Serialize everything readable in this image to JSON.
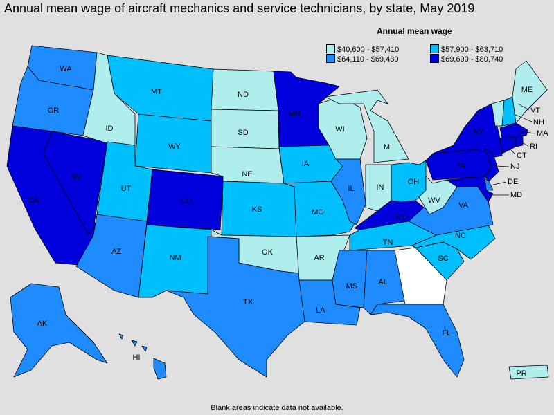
{
  "title": "Annual mean wage of aircraft mechanics and service technicians, by state, May 2019",
  "legend": {
    "title": "Annual mean wage",
    "bins": [
      {
        "label": "$40,600 - $57,410",
        "color": "#b0eeee"
      },
      {
        "label": "$57,900 - $63,710",
        "color": "#00bfff"
      },
      {
        "label": "$64,110 - $69,430",
        "color": "#1e8cff"
      },
      {
        "label": "$69,690 - $80,740",
        "color": "#0000dd"
      }
    ]
  },
  "no_data_color": "#ffffff",
  "footnote": "Blank areas indicate data not available.",
  "states": {
    "WA": {
      "label": "WA",
      "bin": 2
    },
    "OR": {
      "label": "OR",
      "bin": 2
    },
    "CA": {
      "label": "CA",
      "bin": 3
    },
    "NV": {
      "label": "NV",
      "bin": 3
    },
    "ID": {
      "label": "ID",
      "bin": 0
    },
    "MT": {
      "label": "MT",
      "bin": 1
    },
    "WY": {
      "label": "WY",
      "bin": 1
    },
    "UT": {
      "label": "UT",
      "bin": 1
    },
    "AZ": {
      "label": "AZ",
      "bin": 2
    },
    "CO": {
      "label": "CO",
      "bin": 3
    },
    "NM": {
      "label": "NM",
      "bin": 1
    },
    "ND": {
      "label": "ND",
      "bin": 0
    },
    "SD": {
      "label": "SD",
      "bin": 0
    },
    "NE": {
      "label": "NE",
      "bin": 0
    },
    "KS": {
      "label": "KS",
      "bin": 1
    },
    "OK": {
      "label": "OK",
      "bin": 0
    },
    "TX": {
      "label": "TX",
      "bin": 2
    },
    "MN": {
      "label": "MN",
      "bin": 3
    },
    "IA": {
      "label": "IA",
      "bin": 1
    },
    "MO": {
      "label": "MO",
      "bin": 1
    },
    "AR": {
      "label": "AR",
      "bin": 0
    },
    "LA": {
      "label": "LA",
      "bin": 2
    },
    "WI": {
      "label": "WI",
      "bin": 0
    },
    "IL": {
      "label": "IL",
      "bin": 2
    },
    "MI": {
      "label": "MI",
      "bin": 0
    },
    "IN": {
      "label": "IN",
      "bin": 0
    },
    "OH": {
      "label": "OH",
      "bin": 1
    },
    "KY": {
      "label": "KY",
      "bin": 3
    },
    "TN": {
      "label": "TN",
      "bin": 1
    },
    "MS": {
      "label": "MS",
      "bin": 2
    },
    "AL": {
      "label": "AL",
      "bin": 2
    },
    "GA": {
      "label": "",
      "bin": null
    },
    "FL": {
      "label": "FL",
      "bin": 2
    },
    "SC": {
      "label": "SC",
      "bin": 1
    },
    "NC": {
      "label": "NC",
      "bin": 1
    },
    "VA": {
      "label": "VA",
      "bin": 2
    },
    "WV": {
      "label": "WV",
      "bin": 0
    },
    "PA": {
      "label": "PA",
      "bin": 3
    },
    "NY": {
      "label": "NY",
      "bin": 3
    },
    "ME": {
      "label": "ME",
      "bin": 0
    },
    "VT": {
      "label": "VT",
      "bin": 0
    },
    "NH": {
      "label": "NH",
      "bin": 1
    },
    "MA": {
      "label": "MA",
      "bin": 3
    },
    "RI": {
      "label": "RI",
      "bin": 3
    },
    "CT": {
      "label": "CT",
      "bin": 3
    },
    "NJ": {
      "label": "NJ",
      "bin": 3
    },
    "DE": {
      "label": "DE",
      "bin": 2
    },
    "MD": {
      "label": "MD",
      "bin": 3
    },
    "AK": {
      "label": "AK",
      "bin": 2
    },
    "HI": {
      "label": "HI",
      "bin": 2
    },
    "PR": {
      "label": "PR",
      "bin": 0
    }
  }
}
